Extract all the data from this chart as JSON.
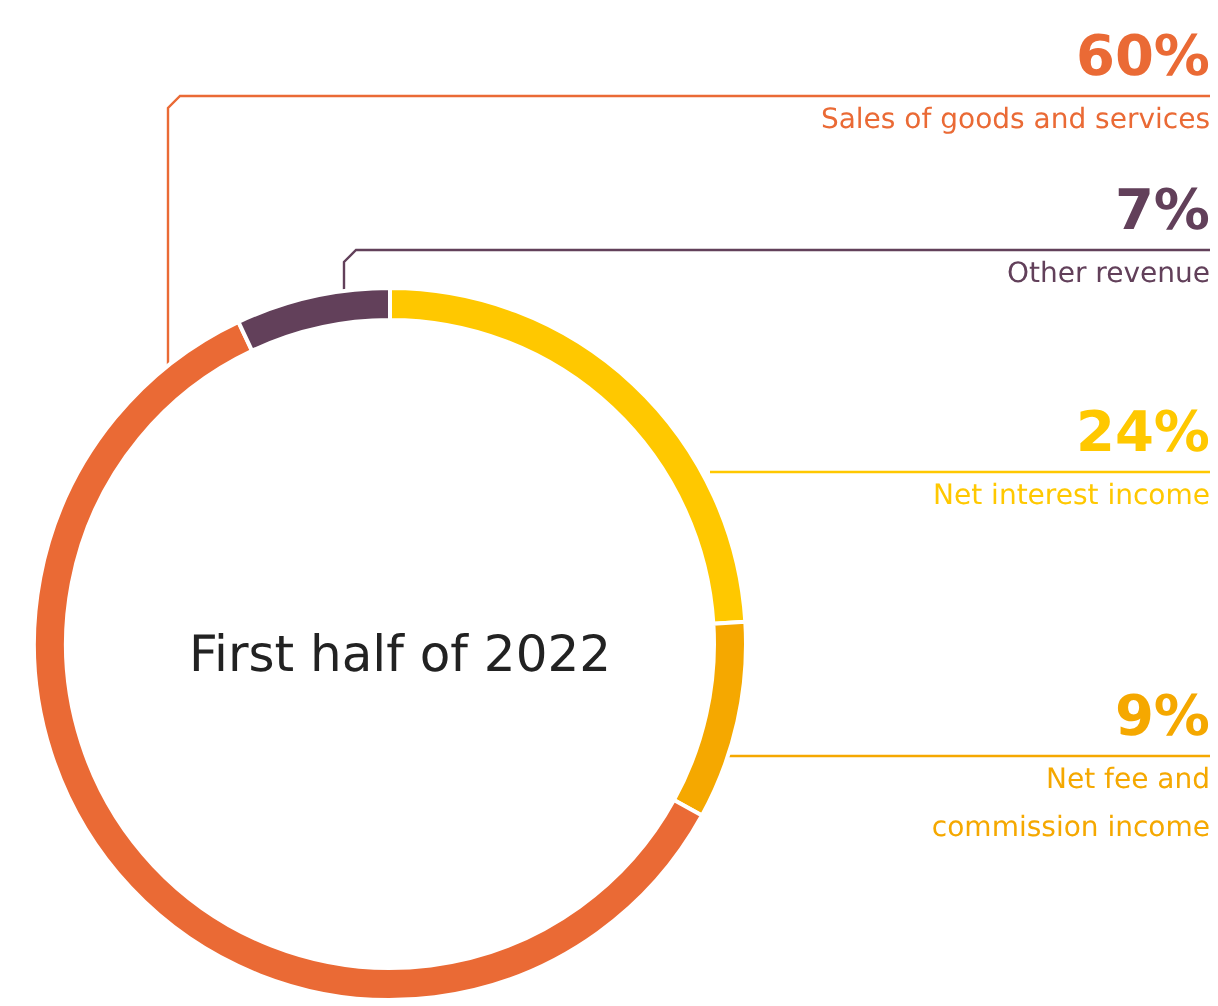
{
  "chart_data": {
    "type": "donut",
    "title": "First half of 2022",
    "categories": [
      "Net interest income",
      "Net fee and\ncommission income",
      "Sales of goods and services",
      "Other revenue"
    ],
    "values": [
      24,
      9,
      60,
      7
    ],
    "value_labels": [
      "24%",
      "9%",
      "60%",
      "7%"
    ],
    "colors": [
      "#ffc800",
      "#f5a800",
      "#ea6a35",
      "#62405a"
    ],
    "legend": false
  }
}
